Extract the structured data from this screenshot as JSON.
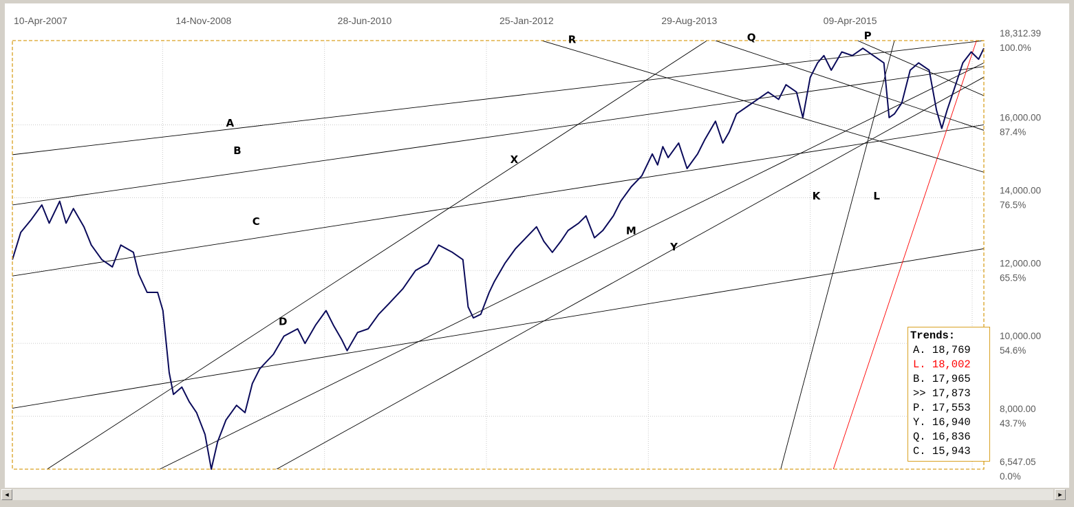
{
  "chart_data": {
    "type": "line",
    "title": "",
    "date_labels": [
      "10-Apr-2007",
      "14-Nov-2008",
      "28-Jun-2010",
      "25-Jan-2012",
      "29-Aug-2013",
      "09-Apr-2015"
    ],
    "x_range": [
      2007.27,
      2016.5
    ],
    "y_range": [
      6547.05,
      18312.39
    ],
    "y_ticks": [
      {
        "value": 18312.39,
        "label": "18,312.39",
        "pct": "100.0%"
      },
      {
        "value": 16000,
        "label": "16,000.00",
        "pct": "87.4%"
      },
      {
        "value": 14000,
        "label": "14,000.00",
        "pct": "76.5%"
      },
      {
        "value": 12000,
        "label": "12,000.00",
        "pct": "65.5%"
      },
      {
        "value": 10000,
        "label": "10,000.00",
        "pct": "54.6%"
      },
      {
        "value": 8000,
        "label": "8,000.00",
        "pct": "43.7%"
      },
      {
        "value": 6547.05,
        "label": "6,547.05",
        "pct": "0.0%"
      }
    ],
    "series": [
      {
        "values": [
          [
            2007.27,
            12300
          ],
          [
            2007.35,
            13050
          ],
          [
            2007.45,
            13400
          ],
          [
            2007.55,
            13800
          ],
          [
            2007.62,
            13300
          ],
          [
            2007.72,
            13900
          ],
          [
            2007.78,
            13300
          ],
          [
            2007.85,
            13700
          ],
          [
            2007.95,
            13200
          ],
          [
            2008.02,
            12700
          ],
          [
            2008.12,
            12300
          ],
          [
            2008.22,
            12100
          ],
          [
            2008.3,
            12700
          ],
          [
            2008.42,
            12500
          ],
          [
            2008.47,
            11900
          ],
          [
            2008.55,
            11400
          ],
          [
            2008.65,
            11400
          ],
          [
            2008.7,
            10900
          ],
          [
            2008.76,
            9200
          ],
          [
            2008.8,
            8600
          ],
          [
            2008.88,
            8800
          ],
          [
            2008.95,
            8400
          ],
          [
            2009.02,
            8100
          ],
          [
            2009.1,
            7500
          ],
          [
            2009.16,
            6547
          ],
          [
            2009.22,
            7300
          ],
          [
            2009.3,
            7900
          ],
          [
            2009.4,
            8300
          ],
          [
            2009.48,
            8100
          ],
          [
            2009.55,
            8900
          ],
          [
            2009.62,
            9300
          ],
          [
            2009.75,
            9700
          ],
          [
            2009.85,
            10200
          ],
          [
            2009.98,
            10400
          ],
          [
            2010.05,
            10000
          ],
          [
            2010.15,
            10500
          ],
          [
            2010.25,
            10900
          ],
          [
            2010.32,
            10500
          ],
          [
            2010.4,
            10100
          ],
          [
            2010.45,
            9800
          ],
          [
            2010.55,
            10300
          ],
          [
            2010.65,
            10400
          ],
          [
            2010.75,
            10800
          ],
          [
            2010.85,
            11100
          ],
          [
            2010.98,
            11500
          ],
          [
            2011.1,
            12000
          ],
          [
            2011.22,
            12200
          ],
          [
            2011.32,
            12700
          ],
          [
            2011.45,
            12500
          ],
          [
            2011.55,
            12300
          ],
          [
            2011.6,
            11000
          ],
          [
            2011.65,
            10700
          ],
          [
            2011.72,
            10800
          ],
          [
            2011.8,
            11400
          ],
          [
            2011.85,
            11700
          ],
          [
            2011.95,
            12200
          ],
          [
            2012.05,
            12600
          ],
          [
            2012.15,
            12900
          ],
          [
            2012.25,
            13200
          ],
          [
            2012.32,
            12800
          ],
          [
            2012.4,
            12500
          ],
          [
            2012.48,
            12800
          ],
          [
            2012.55,
            13100
          ],
          [
            2012.65,
            13300
          ],
          [
            2012.72,
            13500
          ],
          [
            2012.8,
            12900
          ],
          [
            2012.88,
            13100
          ],
          [
            2012.98,
            13500
          ],
          [
            2013.05,
            13900
          ],
          [
            2013.15,
            14300
          ],
          [
            2013.25,
            14600
          ],
          [
            2013.35,
            15200
          ],
          [
            2013.4,
            14900
          ],
          [
            2013.45,
            15400
          ],
          [
            2013.5,
            15100
          ],
          [
            2013.6,
            15500
          ],
          [
            2013.68,
            14800
          ],
          [
            2013.78,
            15200
          ],
          [
            2013.85,
            15600
          ],
          [
            2013.95,
            16100
          ],
          [
            2014.02,
            15500
          ],
          [
            2014.08,
            15800
          ],
          [
            2014.15,
            16300
          ],
          [
            2014.25,
            16500
          ],
          [
            2014.35,
            16700
          ],
          [
            2014.45,
            16900
          ],
          [
            2014.55,
            16700
          ],
          [
            2014.62,
            17100
          ],
          [
            2014.72,
            16900
          ],
          [
            2014.78,
            16200
          ],
          [
            2014.85,
            17300
          ],
          [
            2014.92,
            17700
          ],
          [
            2014.98,
            17900
          ],
          [
            2015.05,
            17500
          ],
          [
            2015.15,
            18000
          ],
          [
            2015.25,
            17900
          ],
          [
            2015.35,
            18100
          ],
          [
            2015.45,
            17900
          ],
          [
            2015.55,
            17700
          ],
          [
            2015.6,
            16200
          ],
          [
            2015.65,
            16300
          ],
          [
            2015.72,
            16600
          ],
          [
            2015.8,
            17500
          ],
          [
            2015.88,
            17700
          ],
          [
            2015.98,
            17500
          ],
          [
            2016.05,
            16400
          ],
          [
            2016.1,
            15900
          ],
          [
            2016.15,
            16400
          ],
          [
            2016.22,
            17000
          ],
          [
            2016.3,
            17700
          ],
          [
            2016.38,
            18000
          ],
          [
            2016.45,
            17800
          ],
          [
            2016.5,
            18100
          ]
        ]
      }
    ],
    "trendlines": [
      {
        "label": "A",
        "p1": [
          2007.27,
          15180
        ],
        "p2": [
          2016.5,
          18312
        ]
      },
      {
        "label": "B",
        "p1": [
          2007.27,
          13800
        ],
        "p2": [
          2016.5,
          17600
        ]
      },
      {
        "label": "C",
        "p1": [
          2007.27,
          11850
        ],
        "p2": [
          2016.5,
          16000
        ]
      },
      {
        "label": "D",
        "p1": [
          2007.27,
          8220
        ],
        "p2": [
          2016.5,
          12600
        ]
      },
      {
        "label": "X",
        "p1": [
          2007.6,
          6547
        ],
        "p2": [
          2013.87,
          18312
        ]
      },
      {
        "label": "M",
        "p1": [
          2008.67,
          6547
        ],
        "p2": [
          2016.5,
          17700
        ]
      },
      {
        "label": "Y",
        "p1": [
          2009.78,
          6547
        ],
        "p2": [
          2016.5,
          17310
        ]
      },
      {
        "label": "K",
        "p1": [
          2014.57,
          6547
        ],
        "p2": [
          2015.65,
          18312
        ]
      },
      {
        "label": "L",
        "p1": [
          2015.07,
          6547
        ],
        "p2": [
          2016.43,
          18312
        ]
      },
      {
        "label": "R",
        "p1": [
          2012.3,
          18312
        ],
        "p2": [
          2016.5,
          14700
        ]
      },
      {
        "label": "Q",
        "p1": [
          2013.95,
          18312
        ],
        "p2": [
          2016.5,
          15850
        ]
      },
      {
        "label": "P",
        "p1": [
          2015.3,
          18312
        ],
        "p2": [
          2016.5,
          16800
        ]
      }
    ],
    "trendline_labels": [
      {
        "label": "A",
        "x": 2009.3,
        "y": 15950
      },
      {
        "label": "B",
        "x": 2009.37,
        "y": 15200
      },
      {
        "label": "C",
        "x": 2009.55,
        "y": 13250
      },
      {
        "label": "D",
        "x": 2009.8,
        "y": 10500
      },
      {
        "label": "X",
        "x": 2012.0,
        "y": 14950
      },
      {
        "label": "M",
        "x": 2013.1,
        "y": 13000
      },
      {
        "label": "Y",
        "x": 2013.52,
        "y": 12550
      },
      {
        "label": "K",
        "x": 2014.87,
        "y": 13950
      },
      {
        "label": "L",
        "x": 2015.45,
        "y": 13950
      },
      {
        "label": "R",
        "x": 2012.55,
        "y": 18250
      },
      {
        "label": "Q",
        "x": 2014.25,
        "y": 18300
      },
      {
        "label": "P",
        "x": 2015.36,
        "y": 18350
      }
    ],
    "grid": true,
    "legend_position": "bottom-right"
  },
  "colors": {
    "price": "#0a0a5a",
    "trend": "#000000",
    "trend_red": "#ff0000",
    "plot_border": "#d9a020",
    "grid": "#c8c8c8"
  },
  "legend": {
    "title": "Trends:",
    "rows": [
      {
        "text": "A. 18,769",
        "color": "#000000"
      },
      {
        "text": "L. 18,002",
        "color": "#ff0000"
      },
      {
        "text": "B. 17,965",
        "color": "#000000"
      },
      {
        "text": ">> 17,873",
        "color": "#000000"
      },
      {
        "text": "P. 17,553",
        "color": "#000000"
      },
      {
        "text": "Y. 16,940",
        "color": "#000000"
      },
      {
        "text": "Q. 16,836",
        "color": "#000000"
      },
      {
        "text": "C. 15,943",
        "color": "#000000"
      }
    ]
  },
  "scrollbar": {
    "left_arrow": "◄",
    "right_arrow": "►"
  }
}
